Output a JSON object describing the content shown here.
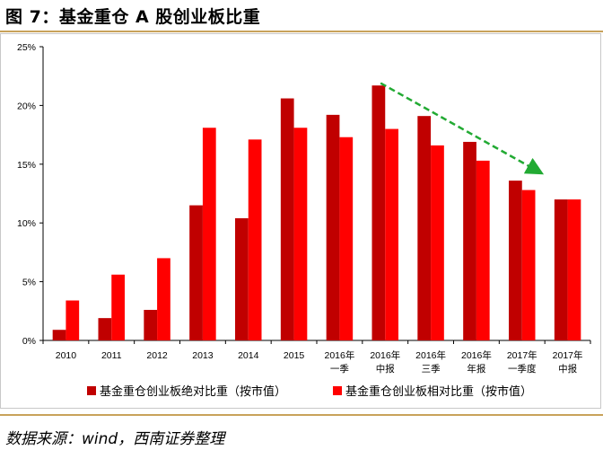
{
  "page": {
    "title": "图 7：基金重仓 A 股创业板比重",
    "source": "数据来源：wind，西南证券整理"
  },
  "colors": {
    "absolute_series": "#c00000",
    "relative_series": "#ff0000",
    "trend_arrow": "#22aa33",
    "rule": "#c8a25a"
  },
  "chart_data": {
    "type": "bar",
    "title": "",
    "xlabel": "",
    "ylabel": "",
    "ylim": [
      0,
      25
    ],
    "yticks": [
      "0%",
      "5%",
      "10%",
      "15%",
      "20%",
      "25%"
    ],
    "grid": false,
    "legend_position": "bottom",
    "categories": [
      [
        "2010"
      ],
      [
        "2011"
      ],
      [
        "2012"
      ],
      [
        "2013"
      ],
      [
        "2014"
      ],
      [
        "2015"
      ],
      [
        "2016年",
        "一季"
      ],
      [
        "2016年",
        "中报"
      ],
      [
        "2016年",
        "三季"
      ],
      [
        "2016年",
        "年报"
      ],
      [
        "2017年",
        "一季度"
      ],
      [
        "2017年",
        "中报"
      ]
    ],
    "series": [
      {
        "name": "基金重仓创业板绝对比重（按市值）",
        "color": "#c00000",
        "values": [
          0.9,
          1.9,
          2.6,
          11.5,
          10.4,
          20.6,
          19.2,
          21.7,
          19.1,
          16.9,
          13.6,
          12.0
        ]
      },
      {
        "name": "基金重仓创业板相对比重（按市值）",
        "color": "#ff0000",
        "values": [
          3.4,
          5.6,
          7.0,
          18.1,
          17.1,
          18.1,
          17.3,
          18.0,
          16.6,
          15.3,
          12.8,
          12.0
        ]
      }
    ],
    "annotations": [
      {
        "type": "trend-arrow",
        "style": "dashed",
        "color": "#22aa33",
        "from_category": "2016年 中报",
        "to_category": "2017年 一季度",
        "direction": "down"
      }
    ]
  }
}
